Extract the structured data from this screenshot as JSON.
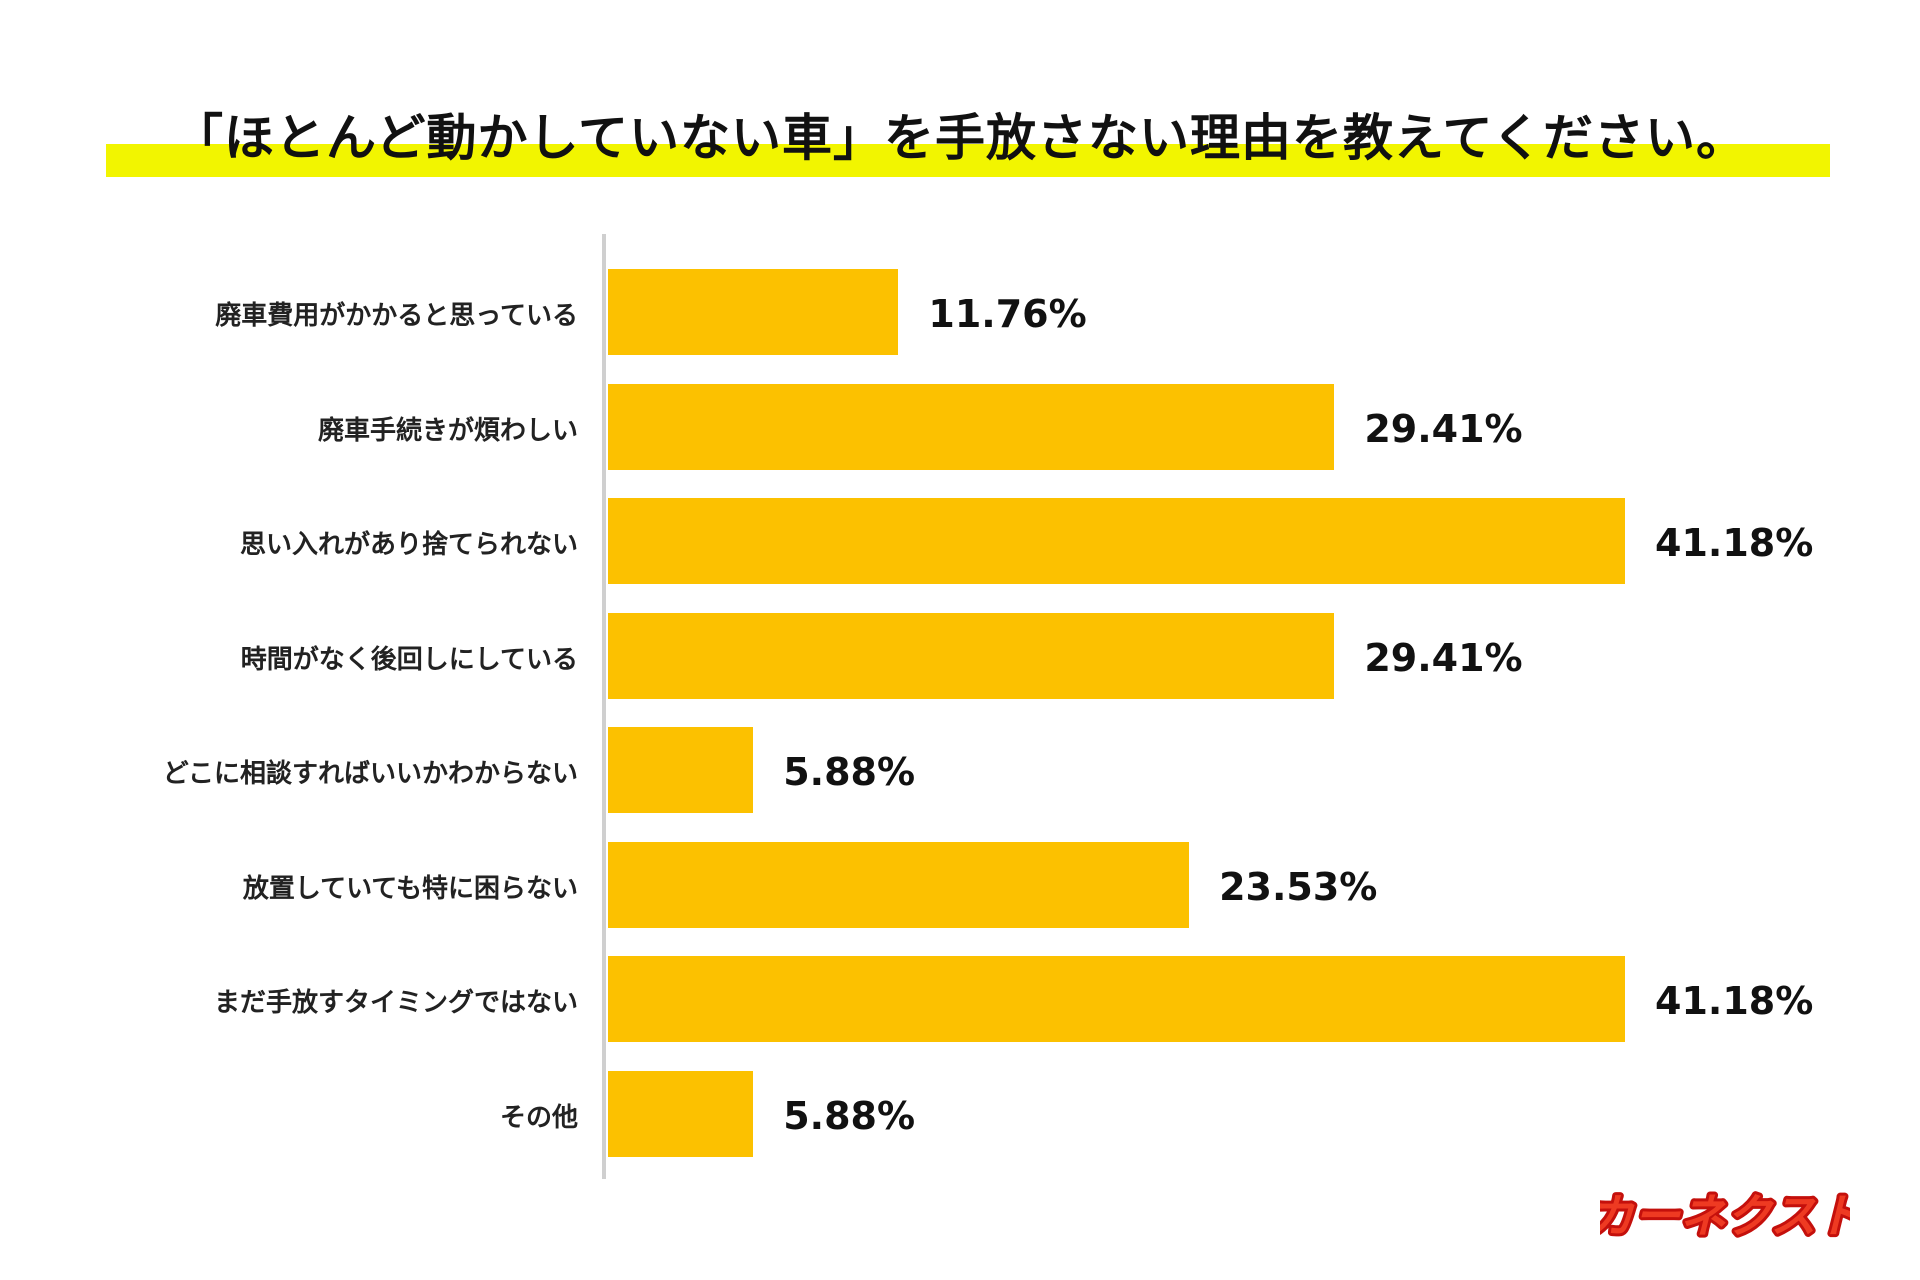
{
  "chart_data": {
    "type": "bar",
    "orientation": "horizontal",
    "title": "「ほとんど動かしていない車」を手放さない理由を教えてください。",
    "categories": [
      "廃車費用がかかると思っている",
      "廃車手続きが煩わしい",
      "思い入れがあり捨てられない",
      "時間がなく後回しにしている",
      "どこに相談すればいいかわからない",
      "放置していても特に困らない",
      "まだ手放すタイミングではない",
      "その他"
    ],
    "values": [
      11.76,
      29.41,
      41.18,
      29.41,
      5.88,
      23.53,
      41.18,
      5.88
    ],
    "labels": [
      "11.76%",
      "29.41%",
      "41.18%",
      "29.41%",
      "5.88%",
      "23.53%",
      "41.18%",
      "5.88%"
    ],
    "unit": "%",
    "grid": false,
    "bar_color": "#fcc100",
    "title_highlight_color": "#f2f500"
  },
  "logo": {
    "text": "カーネクスト",
    "color": "#e8201a"
  }
}
